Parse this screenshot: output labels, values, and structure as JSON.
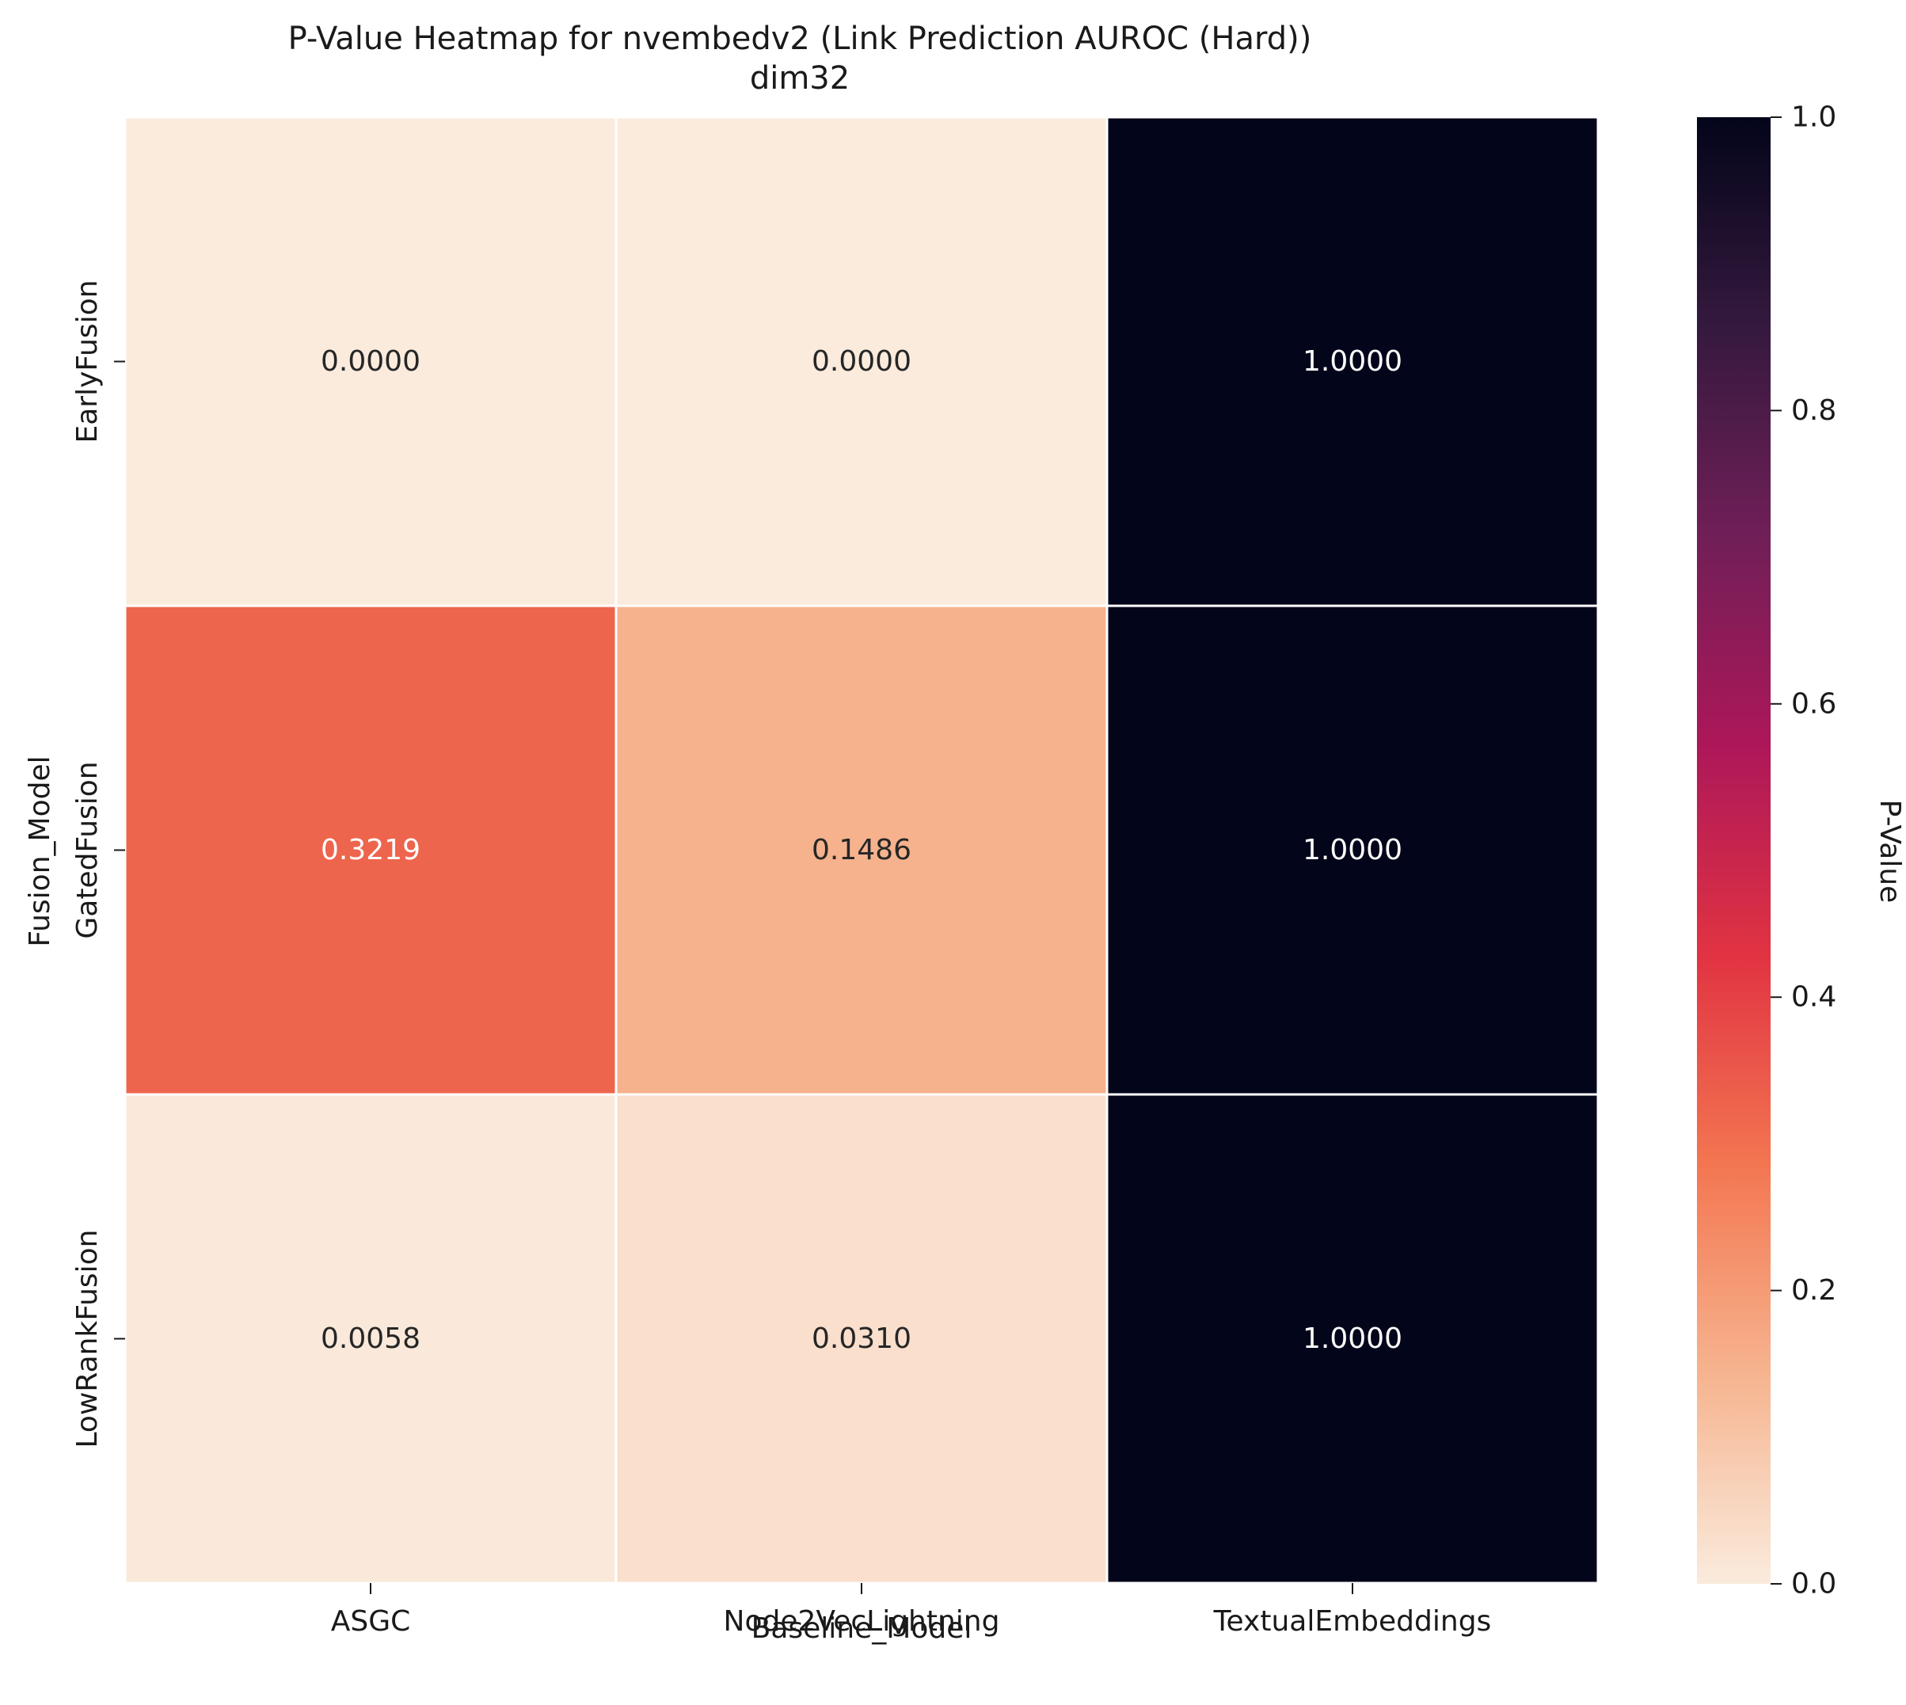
{
  "chart_data": {
    "type": "heatmap",
    "title": "P-Value Heatmap for nvembedv2 (Link Prediction AUROC (Hard))",
    "subtitle": "dim32",
    "xlabel": "Baseline_Model",
    "ylabel": "Fusion_Model",
    "x_categories": [
      "ASGC",
      "Node2VecLightning",
      "TextualEmbeddings"
    ],
    "y_categories": [
      "EarlyFusion",
      "GatedFusion",
      "LowRankFusion"
    ],
    "values": [
      [
        0.0,
        0.0,
        1.0
      ],
      [
        0.3219,
        0.1486,
        1.0
      ],
      [
        0.0058,
        0.031,
        1.0
      ]
    ],
    "value_labels": [
      [
        "0.0000",
        "0.0000",
        "1.0000"
      ],
      [
        "0.3219",
        "0.1486",
        "1.0000"
      ],
      [
        "0.0058",
        "0.0310",
        "1.0000"
      ]
    ],
    "colorbar": {
      "label": "P-Value",
      "range": [
        0,
        1
      ],
      "ticks": [
        "0.0",
        "0.2",
        "0.4",
        "0.6",
        "0.8",
        "1.0"
      ],
      "colormap": "rocket_r"
    },
    "colormap_stops": [
      "#faebdd",
      "#f6b48f",
      "#f37651",
      "#e13342",
      "#ad1759",
      "#701f57",
      "#35193e",
      "#03051a"
    ],
    "cell_border_color": "#ffffff",
    "legend": "right"
  }
}
